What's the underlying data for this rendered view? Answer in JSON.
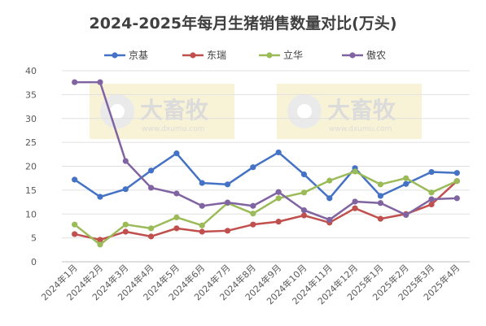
{
  "chart_data": {
    "type": "line",
    "title": "2024-2025年每月生猪销售数量对比(万头)",
    "categories": [
      "2024年1月",
      "2024年2月",
      "2024年3月",
      "2024年4月",
      "2024年5月",
      "2024年6月",
      "2024年7月",
      "2024年8月",
      "2024年9月",
      "2024年10月",
      "2024年11月",
      "2024年12月",
      "2025年1月",
      "2025年2月",
      "2025年3月",
      "2025年4月"
    ],
    "series": [
      {
        "name": "京基",
        "color": "#4472C4",
        "values": [
          17.2,
          13.6,
          15.2,
          19.1,
          22.7,
          16.5,
          16.2,
          19.8,
          22.9,
          18.3,
          13.3,
          19.6,
          13.8,
          16.3,
          18.8,
          18.6
        ]
      },
      {
        "name": "东瑞",
        "color": "#C0504D",
        "values": [
          5.8,
          4.6,
          6.3,
          5.3,
          7.0,
          6.3,
          6.5,
          7.8,
          8.4,
          9.7,
          8.2,
          11.2,
          9.0,
          10.0,
          12.0,
          16.9
        ]
      },
      {
        "name": "立华",
        "color": "#9BBB59",
        "values": [
          7.8,
          3.6,
          7.8,
          7.0,
          9.3,
          7.6,
          12.3,
          10.1,
          13.3,
          14.5,
          17.0,
          18.9,
          16.2,
          17.5,
          14.5,
          16.9
        ]
      },
      {
        "name": "傲农",
        "color": "#8064A2",
        "values": [
          37.6,
          37.6,
          21.1,
          15.5,
          14.3,
          11.7,
          12.4,
          11.7,
          14.6,
          10.8,
          8.8,
          12.6,
          12.3,
          9.8,
          13.1,
          13.3
        ]
      }
    ],
    "ylim": [
      0,
      40
    ],
    "yticks": [
      0,
      5,
      10,
      15,
      20,
      25,
      30,
      35,
      40
    ],
    "grid": true,
    "legend_position": "top-center"
  },
  "watermark": {
    "brand": "大畜牧",
    "url": "www.dxumu.com"
  }
}
